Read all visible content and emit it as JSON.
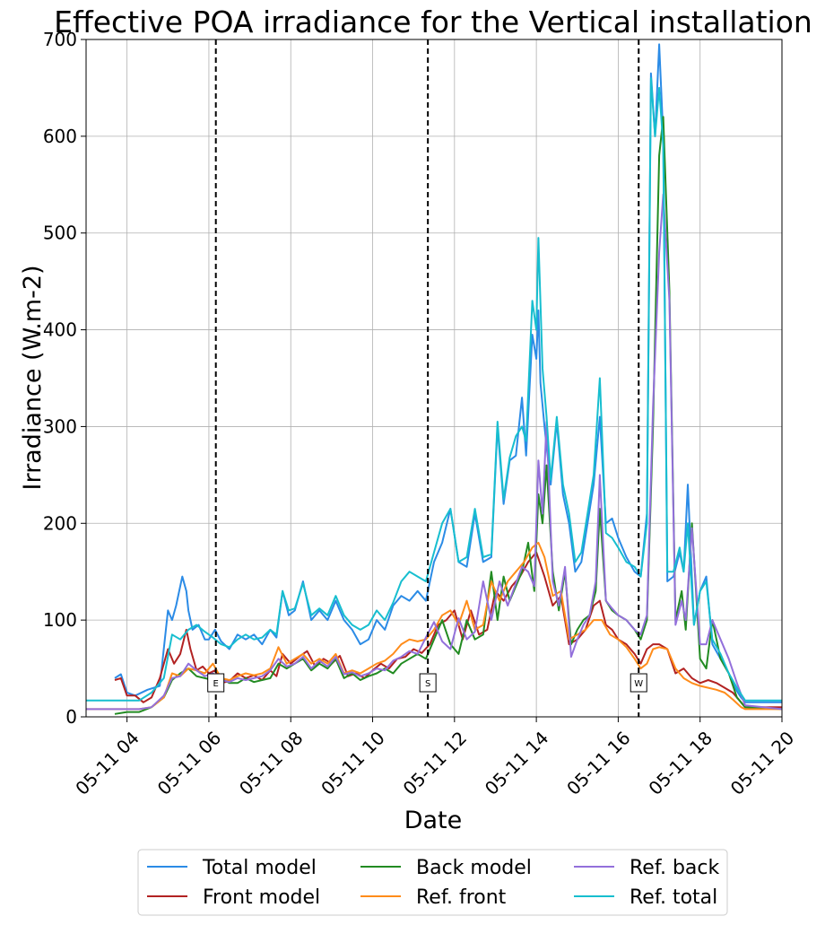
{
  "chart_data": {
    "type": "line",
    "title": "Effective POA irradiance for the Vertical installation",
    "xlabel": "Date",
    "ylabel": "Irradiance (W.m-2)",
    "xlim_hours": [
      3.0,
      20.0
    ],
    "ylim": [
      0,
      700
    ],
    "grid": true,
    "x_ticks": [
      {
        "hour": 4,
        "label": "05-11 04"
      },
      {
        "hour": 6,
        "label": "05-11 06"
      },
      {
        "hour": 8,
        "label": "05-11 08"
      },
      {
        "hour": 10,
        "label": "05-11 10"
      },
      {
        "hour": 12,
        "label": "05-11 12"
      },
      {
        "hour": 14,
        "label": "05-11 14"
      },
      {
        "hour": 16,
        "label": "05-11 16"
      },
      {
        "hour": 18,
        "label": "05-11 18"
      },
      {
        "hour": 20,
        "label": "05-11 20"
      }
    ],
    "y_ticks": [
      0,
      100,
      200,
      300,
      400,
      500,
      600,
      700
    ],
    "vlines": [
      {
        "hour": 6.17,
        "label": "E"
      },
      {
        "hour": 11.35,
        "label": "S"
      },
      {
        "hour": 16.5,
        "label": "W"
      }
    ],
    "legend_position": "below-center",
    "series": [
      {
        "name": "Total model",
        "color": "#2b8be6",
        "x": [
          3.7,
          3.85,
          4.0,
          4.2,
          4.5,
          4.8,
          5.0,
          5.1,
          5.2,
          5.35,
          5.45,
          5.5,
          5.6,
          5.75,
          5.9,
          6.0,
          6.15,
          6.3,
          6.5,
          6.7,
          6.9,
          7.1,
          7.3,
          7.5,
          7.65,
          7.8,
          7.95,
          8.1,
          8.3,
          8.5,
          8.7,
          8.9,
          9.1,
          9.3,
          9.5,
          9.7,
          9.9,
          10.1,
          10.3,
          10.5,
          10.7,
          10.9,
          11.1,
          11.3,
          11.5,
          11.7,
          11.9,
          12.1,
          12.3,
          12.5,
          12.7,
          12.9,
          13.05,
          13.2,
          13.35,
          13.5,
          13.65,
          13.75,
          13.9,
          14.0,
          14.05,
          14.1,
          14.2,
          14.35,
          14.5,
          14.65,
          14.8,
          14.95,
          15.1,
          15.25,
          15.4,
          15.55,
          15.7,
          15.85,
          16.0,
          16.2,
          16.4,
          16.55,
          16.7,
          16.8,
          16.9,
          17.0,
          17.1,
          17.2,
          17.35,
          17.5,
          17.6,
          17.7,
          17.85,
          18.0,
          18.15,
          18.3,
          18.5,
          18.7,
          18.85,
          19.0,
          19.1,
          20.0
        ],
        "y": [
          40,
          44,
          25,
          22,
          28,
          32,
          110,
          100,
          115,
          145,
          130,
          110,
          90,
          95,
          80,
          80,
          90,
          78,
          70,
          85,
          80,
          85,
          75,
          90,
          82,
          130,
          105,
          110,
          140,
          100,
          110,
          100,
          120,
          100,
          90,
          75,
          80,
          100,
          90,
          115,
          125,
          120,
          130,
          120,
          160,
          180,
          215,
          160,
          155,
          210,
          160,
          165,
          300,
          220,
          265,
          270,
          330,
          270,
          395,
          370,
          420,
          345,
          300,
          240,
          305,
          230,
          200,
          150,
          160,
          200,
          240,
          310,
          200,
          205,
          185,
          165,
          150,
          145,
          210,
          665,
          600,
          695,
          600,
          140,
          145,
          170,
          150,
          240,
          95,
          130,
          145,
          75,
          60,
          45,
          30,
          20,
          15,
          15
        ]
      },
      {
        "name": "Front model",
        "color": "#b22222",
        "x": [
          3.7,
          3.85,
          4.0,
          4.2,
          4.4,
          4.6,
          4.8,
          5.0,
          5.15,
          5.3,
          5.45,
          5.55,
          5.7,
          5.85,
          6.0,
          6.15,
          6.3,
          6.5,
          6.7,
          6.9,
          7.1,
          7.3,
          7.5,
          7.65,
          7.8,
          8.0,
          8.2,
          8.4,
          8.6,
          8.8,
          9.0,
          9.2,
          9.4,
          9.6,
          9.8,
          10.0,
          10.2,
          10.4,
          10.6,
          10.8,
          11.0,
          11.2,
          11.4,
          11.6,
          11.8,
          12.0,
          12.2,
          12.4,
          12.6,
          12.8,
          13.0,
          13.2,
          13.4,
          13.6,
          13.8,
          14.0,
          14.2,
          14.4,
          14.6,
          14.8,
          15.0,
          15.2,
          15.4,
          15.55,
          15.7,
          15.85,
          16.0,
          16.2,
          16.4,
          16.55,
          16.7,
          16.85,
          17.0,
          17.2,
          17.4,
          17.6,
          17.8,
          18.0,
          18.2,
          18.4,
          18.6,
          18.8,
          19.0,
          19.1,
          20.0
        ],
        "y": [
          38,
          40,
          22,
          22,
          15,
          20,
          40,
          70,
          55,
          65,
          90,
          70,
          48,
          52,
          45,
          48,
          35,
          37,
          45,
          40,
          43,
          38,
          48,
          42,
          65,
          55,
          62,
          68,
          52,
          60,
          55,
          63,
          42,
          45,
          40,
          48,
          55,
          50,
          60,
          62,
          70,
          66,
          75,
          95,
          100,
          110,
          80,
          110,
          85,
          90,
          130,
          120,
          135,
          145,
          160,
          170,
          145,
          115,
          125,
          75,
          80,
          90,
          115,
          120,
          95,
          90,
          80,
          75,
          65,
          55,
          70,
          75,
          75,
          70,
          45,
          50,
          40,
          35,
          38,
          35,
          30,
          25,
          15,
          10,
          10
        ]
      },
      {
        "name": "Back model",
        "color": "#228b22",
        "x": [
          3.7,
          4.0,
          4.3,
          4.6,
          4.9,
          5.1,
          5.3,
          5.5,
          5.7,
          5.9,
          6.1,
          6.3,
          6.5,
          6.7,
          6.9,
          7.1,
          7.3,
          7.5,
          7.7,
          7.9,
          8.1,
          8.3,
          8.5,
          8.7,
          8.9,
          9.1,
          9.3,
          9.5,
          9.7,
          9.9,
          10.1,
          10.3,
          10.5,
          10.7,
          10.9,
          11.1,
          11.3,
          11.5,
          11.7,
          11.9,
          12.1,
          12.3,
          12.5,
          12.7,
          12.9,
          13.05,
          13.2,
          13.35,
          13.5,
          13.65,
          13.8,
          13.95,
          14.05,
          14.15,
          14.25,
          14.4,
          14.55,
          14.7,
          14.85,
          15.0,
          15.15,
          15.3,
          15.45,
          15.55,
          15.7,
          15.85,
          16.0,
          16.2,
          16.4,
          16.55,
          16.7,
          16.85,
          17.0,
          17.1,
          17.25,
          17.4,
          17.55,
          17.65,
          17.8,
          18.0,
          18.15,
          18.3,
          18.5,
          18.7,
          18.9,
          19.1,
          20.0
        ],
        "y": [
          3,
          5,
          5,
          10,
          20,
          38,
          45,
          50,
          42,
          40,
          38,
          40,
          35,
          35,
          40,
          36,
          38,
          40,
          55,
          50,
          55,
          60,
          48,
          55,
          50,
          60,
          40,
          45,
          38,
          42,
          45,
          50,
          45,
          55,
          60,
          65,
          60,
          80,
          100,
          75,
          65,
          100,
          80,
          85,
          150,
          100,
          145,
          120,
          135,
          150,
          180,
          130,
          230,
          200,
          260,
          150,
          110,
          150,
          75,
          90,
          100,
          105,
          130,
          215,
          120,
          110,
          105,
          100,
          90,
          80,
          100,
          300,
          580,
          620,
          440,
          100,
          130,
          90,
          200,
          60,
          50,
          100,
          60,
          45,
          20,
          10,
          8
        ]
      },
      {
        "name": "Ref. front",
        "color": "#ff8c1a",
        "x": [
          3.0,
          3.7,
          4.0,
          4.3,
          4.6,
          4.9,
          5.1,
          5.3,
          5.5,
          5.7,
          5.9,
          6.1,
          6.3,
          6.5,
          6.7,
          6.9,
          7.1,
          7.3,
          7.5,
          7.7,
          7.9,
          8.1,
          8.3,
          8.5,
          8.7,
          8.9,
          9.1,
          9.3,
          9.5,
          9.7,
          9.9,
          10.1,
          10.3,
          10.5,
          10.7,
          10.9,
          11.1,
          11.3,
          11.5,
          11.7,
          11.9,
          12.1,
          12.3,
          12.5,
          12.7,
          12.9,
          13.1,
          13.3,
          13.5,
          13.7,
          13.9,
          14.05,
          14.2,
          14.4,
          14.6,
          14.8,
          15.0,
          15.2,
          15.4,
          15.6,
          15.8,
          16.0,
          16.2,
          16.4,
          16.55,
          16.7,
          16.85,
          17.0,
          17.2,
          17.4,
          17.6,
          17.8,
          18.0,
          18.2,
          18.4,
          18.6,
          18.8,
          19.0,
          19.1,
          20.0
        ],
        "y": [
          8,
          8,
          8,
          8,
          10,
          20,
          45,
          42,
          50,
          48,
          45,
          55,
          40,
          38,
          42,
          45,
          43,
          45,
          50,
          72,
          55,
          60,
          65,
          55,
          60,
          55,
          65,
          45,
          48,
          45,
          50,
          55,
          58,
          65,
          75,
          80,
          78,
          80,
          90,
          105,
          110,
          95,
          120,
          90,
          95,
          140,
          120,
          140,
          150,
          160,
          175,
          180,
          165,
          125,
          130,
          80,
          85,
          90,
          100,
          100,
          85,
          80,
          72,
          60,
          50,
          55,
          70,
          72,
          70,
          50,
          40,
          35,
          32,
          30,
          28,
          25,
          18,
          10,
          8,
          8
        ]
      },
      {
        "name": "Ref. back",
        "color": "#9370db",
        "x": [
          3.0,
          3.7,
          4.0,
          4.3,
          4.6,
          4.9,
          5.1,
          5.3,
          5.5,
          5.7,
          5.9,
          6.1,
          6.3,
          6.5,
          6.7,
          6.9,
          7.1,
          7.3,
          7.5,
          7.7,
          7.9,
          8.1,
          8.3,
          8.5,
          8.7,
          8.9,
          9.1,
          9.3,
          9.5,
          9.7,
          9.9,
          10.1,
          10.3,
          10.5,
          10.7,
          10.9,
          11.1,
          11.3,
          11.5,
          11.7,
          11.9,
          12.1,
          12.3,
          12.5,
          12.7,
          12.9,
          13.1,
          13.3,
          13.5,
          13.65,
          13.8,
          13.95,
          14.05,
          14.15,
          14.25,
          14.4,
          14.55,
          14.7,
          14.85,
          15.0,
          15.15,
          15.3,
          15.45,
          15.55,
          15.7,
          15.85,
          16.0,
          16.2,
          16.4,
          16.55,
          16.7,
          16.85,
          17.0,
          17.1,
          17.25,
          17.4,
          17.55,
          17.65,
          17.8,
          18.0,
          18.15,
          18.3,
          18.5,
          18.7,
          18.9,
          19.1,
          20.0
        ],
        "y": [
          8,
          8,
          8,
          8,
          10,
          22,
          40,
          42,
          55,
          48,
          42,
          45,
          38,
          36,
          40,
          38,
          40,
          42,
          48,
          60,
          52,
          55,
          62,
          50,
          58,
          52,
          62,
          44,
          46,
          42,
          45,
          50,
          48,
          58,
          62,
          68,
          65,
          82,
          98,
          78,
          70,
          102,
          80,
          88,
          140,
          100,
          140,
          115,
          138,
          155,
          150,
          135,
          265,
          210,
          305,
          140,
          115,
          155,
          62,
          80,
          95,
          105,
          140,
          250,
          120,
          112,
          105,
          100,
          90,
          85,
          105,
          320,
          480,
          540,
          430,
          95,
          120,
          100,
          195,
          75,
          75,
          100,
          80,
          60,
          35,
          12,
          8
        ]
      },
      {
        "name": "Ref. total",
        "color": "#17becf",
        "x": [
          3.0,
          3.7,
          4.0,
          4.3,
          4.6,
          4.9,
          5.1,
          5.3,
          5.5,
          5.7,
          5.9,
          6.1,
          6.3,
          6.5,
          6.7,
          6.9,
          7.1,
          7.3,
          7.5,
          7.65,
          7.8,
          7.95,
          8.1,
          8.3,
          8.5,
          8.7,
          8.9,
          9.1,
          9.3,
          9.5,
          9.7,
          9.9,
          10.1,
          10.3,
          10.5,
          10.7,
          10.9,
          11.1,
          11.3,
          11.5,
          11.7,
          11.9,
          12.1,
          12.3,
          12.5,
          12.7,
          12.9,
          13.05,
          13.2,
          13.35,
          13.5,
          13.65,
          13.75,
          13.9,
          14.0,
          14.05,
          14.15,
          14.25,
          14.35,
          14.5,
          14.65,
          14.8,
          14.95,
          15.1,
          15.25,
          15.4,
          15.55,
          15.7,
          15.85,
          16.0,
          16.2,
          16.4,
          16.55,
          16.7,
          16.8,
          16.9,
          17.0,
          17.1,
          17.2,
          17.35,
          17.5,
          17.6,
          17.7,
          17.85,
          18.0,
          18.15,
          18.3,
          18.5,
          18.7,
          18.9,
          19.1,
          20.0
        ],
        "y": [
          17,
          17,
          17,
          17,
          25,
          40,
          85,
          80,
          90,
          95,
          88,
          82,
          75,
          72,
          80,
          85,
          80,
          82,
          90,
          85,
          130,
          110,
          112,
          138,
          105,
          112,
          105,
          125,
          105,
          95,
          90,
          95,
          110,
          100,
          118,
          140,
          150,
          145,
          140,
          170,
          200,
          215,
          160,
          165,
          215,
          165,
          168,
          305,
          225,
          268,
          290,
          300,
          285,
          430,
          400,
          495,
          360,
          310,
          245,
          310,
          240,
          210,
          160,
          170,
          210,
          250,
          350,
          190,
          185,
          175,
          160,
          155,
          145,
          200,
          660,
          600,
          650,
          590,
          150,
          150,
          175,
          150,
          200,
          95,
          130,
          140,
          80,
          65,
          45,
          30,
          17,
          17
        ]
      }
    ]
  }
}
